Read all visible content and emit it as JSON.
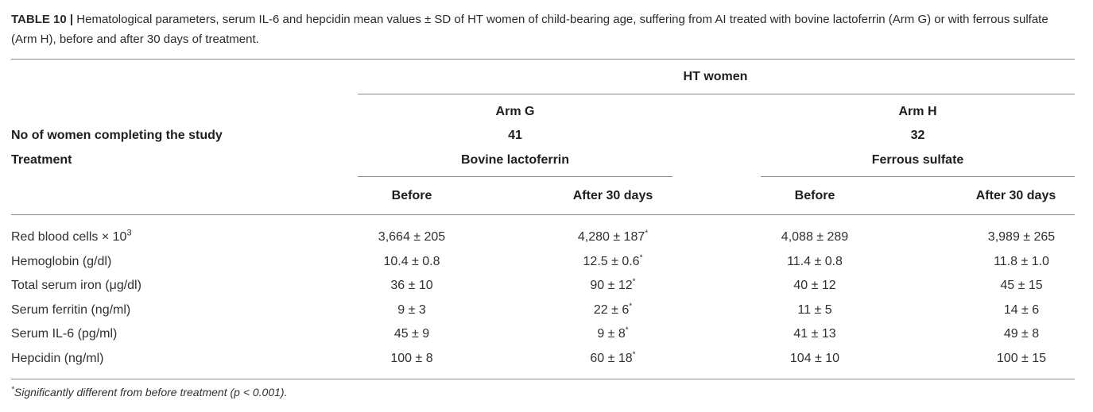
{
  "caption": {
    "label": "TABLE 10 |",
    "text": "Hematological parameters, serum IL-6 and hepcidin mean values ± SD of HT women of child-bearing age, suffering from AI treated with bovine lactoferrin (Arm G) or with ferrous sulfate (Arm H), before and after 30 days of treatment."
  },
  "table": {
    "group_header": "HT women",
    "row_labels": {
      "women_count": "No of women completing the study",
      "treatment": "Treatment"
    },
    "arms": [
      {
        "name": "Arm G",
        "count": "41",
        "treatment": "Bovine lactoferrin",
        "before_label": "Before",
        "after_label": "After 30 days"
      },
      {
        "name": "Arm H",
        "count": "32",
        "treatment": "Ferrous sulfate",
        "before_label": "Before",
        "after_label": "After 30 days"
      }
    ],
    "rows": [
      {
        "label": "Red blood cells × 10",
        "label_sup": "3",
        "g_before": "3,664 ± 205",
        "g_after": "4,280 ± 187",
        "g_after_mark": "*",
        "h_before": "4,088 ± 289",
        "h_after": "3,989 ± 265"
      },
      {
        "label": "Hemoglobin (g/dl)",
        "g_before": "10.4 ± 0.8",
        "g_after": "12.5 ± 0.6",
        "g_after_mark": "*",
        "h_before": "11.4 ± 0.8",
        "h_after": "11.8 ± 1.0"
      },
      {
        "label": "Total serum iron (μg/dl)",
        "g_before": "36 ± 10",
        "g_after": "90 ± 12",
        "g_after_mark": "*",
        "h_before": "40 ± 12",
        "h_after": "45 ± 15"
      },
      {
        "label": "Serum ferritin (ng/ml)",
        "g_before": "9 ± 3",
        "g_after": "22 ± 6",
        "g_after_mark": "*",
        "h_before": "11 ± 5",
        "h_after": "14 ± 6"
      },
      {
        "label": "Serum IL-6 (pg/ml)",
        "g_before": "45 ± 9",
        "g_after": "9 ± 8",
        "g_after_mark": "*",
        "h_before": "41 ± 13",
        "h_after": "49 ± 8"
      },
      {
        "label": "Hepcidin (ng/ml)",
        "g_before": "100 ± 8",
        "g_after": "60 ± 18",
        "g_after_mark": "*",
        "h_before": "104 ± 10",
        "h_after": "100 ± 15"
      }
    ]
  },
  "footnote": {
    "mark": "*",
    "text": "Significantly different from before treatment (p < 0.001)."
  }
}
